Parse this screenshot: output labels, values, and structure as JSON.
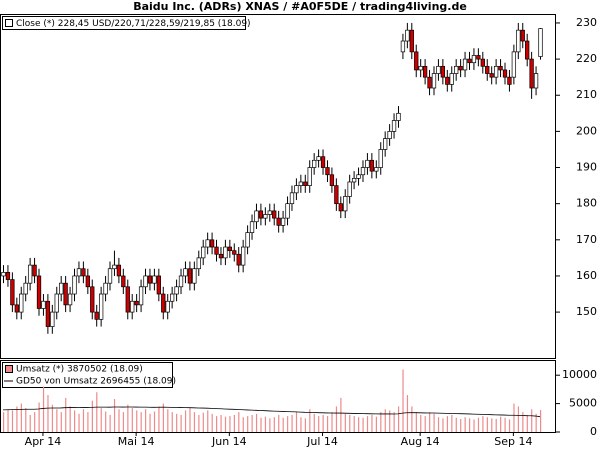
{
  "chart_data": [
    {
      "type": "candlestick",
      "title": "Baidu Inc. (ADRs) XNAS / #A0F5DE / trading4living.de",
      "name": "Close (*) 228,45 USD/220,71/228,59/219,85 (18.09)",
      "up_color": "#ffffff",
      "down_color": "#cc0000",
      "open": [
        160,
        161,
        159,
        152,
        150,
        155,
        158,
        163,
        160,
        151,
        153,
        146,
        150,
        155,
        158,
        152,
        155,
        160,
        162,
        160,
        157,
        150,
        148,
        155,
        158,
        162,
        163,
        160,
        157,
        150,
        153,
        152,
        157,
        160,
        158,
        160,
        155,
        150,
        153,
        155,
        157,
        160,
        162,
        158,
        162,
        165,
        168,
        170,
        168,
        166,
        165,
        168,
        167,
        166,
        163,
        168,
        172,
        175,
        178,
        176,
        177,
        178,
        176,
        174,
        176,
        180,
        183,
        185,
        186,
        185,
        190,
        192,
        193,
        190,
        188,
        185,
        180,
        178,
        182,
        186,
        187,
        188,
        190,
        192,
        189,
        190,
        195,
        198,
        200,
        203,
        222,
        225,
        228,
        222,
        217,
        218,
        215,
        212,
        216,
        218,
        215,
        213,
        216,
        218,
        217,
        220,
        219,
        221,
        220,
        218,
        216,
        215,
        218,
        217,
        215,
        215,
        222,
        228,
        225,
        220,
        212,
        220.71
      ],
      "high": [
        163,
        163,
        161,
        154,
        157,
        160,
        165,
        165,
        162,
        155,
        155,
        152,
        157,
        160,
        160,
        157,
        162,
        164,
        164,
        162,
        159,
        152,
        157,
        160,
        164,
        167,
        165,
        162,
        159,
        155,
        155,
        159,
        162,
        162,
        162,
        162,
        157,
        155,
        157,
        159,
        162,
        164,
        164,
        164,
        167,
        170,
        172,
        172,
        170,
        168,
        170,
        170,
        169,
        168,
        170,
        174,
        177,
        180,
        180,
        179,
        180,
        180,
        178,
        178,
        182,
        185,
        187,
        188,
        188,
        192,
        194,
        195,
        195,
        192,
        190,
        187,
        182,
        184,
        188,
        189,
        190,
        192,
        194,
        194,
        192,
        197,
        200,
        202,
        205,
        207,
        227,
        230,
        230,
        224,
        220,
        220,
        217,
        218,
        220,
        220,
        217,
        218,
        220,
        220,
        222,
        222,
        223,
        223,
        222,
        220,
        218,
        220,
        220,
        219,
        217,
        224,
        230,
        230,
        227,
        222,
        218,
        228.59
      ],
      "low": [
        158,
        157,
        150,
        148,
        148,
        153,
        156,
        158,
        149,
        149,
        144,
        144,
        148,
        153,
        150,
        150,
        153,
        158,
        158,
        155,
        148,
        146,
        146,
        153,
        156,
        160,
        158,
        155,
        148,
        148,
        150,
        150,
        155,
        156,
        156,
        153,
        148,
        148,
        151,
        153,
        155,
        158,
        156,
        156,
        160,
        163,
        166,
        166,
        164,
        163,
        163,
        165,
        164,
        161,
        161,
        166,
        170,
        173,
        174,
        174,
        175,
        174,
        172,
        172,
        174,
        178,
        181,
        183,
        183,
        183,
        188,
        190,
        188,
        186,
        183,
        178,
        176,
        176,
        180,
        184,
        185,
        186,
        188,
        187,
        187,
        188,
        193,
        196,
        198,
        201,
        220,
        223,
        220,
        215,
        215,
        213,
        210,
        210,
        214,
        213,
        211,
        211,
        214,
        215,
        215,
        217,
        217,
        218,
        216,
        214,
        213,
        213,
        215,
        213,
        211,
        213,
        220,
        223,
        218,
        209,
        210,
        219.85
      ],
      "close": [
        161,
        159,
        152,
        150,
        155,
        158,
        163,
        160,
        151,
        153,
        146,
        150,
        155,
        158,
        152,
        155,
        160,
        162,
        160,
        157,
        150,
        148,
        155,
        158,
        162,
        163,
        160,
        157,
        150,
        153,
        152,
        157,
        160,
        158,
        160,
        155,
        150,
        153,
        155,
        157,
        160,
        162,
        158,
        162,
        165,
        168,
        170,
        168,
        166,
        165,
        168,
        167,
        166,
        163,
        168,
        172,
        175,
        178,
        176,
        177,
        178,
        176,
        174,
        176,
        180,
        183,
        185,
        186,
        185,
        190,
        192,
        193,
        190,
        188,
        185,
        180,
        178,
        182,
        186,
        187,
        188,
        190,
        192,
        189,
        190,
        195,
        198,
        200,
        203,
        205,
        225,
        228,
        222,
        217,
        218,
        215,
        212,
        216,
        218,
        215,
        213,
        216,
        218,
        217,
        220,
        219,
        221,
        220,
        218,
        216,
        215,
        218,
        217,
        215,
        213,
        222,
        228,
        225,
        220,
        212,
        216,
        228.45
      ],
      "ylim": [
        137.3,
        232.2
      ],
      "yticks": [
        150,
        160,
        170,
        180,
        190,
        200,
        210,
        220,
        230
      ]
    },
    {
      "type": "volume",
      "categories": [
        null,
        null,
        null,
        null,
        null,
        null,
        null,
        null,
        null,
        "Apr 14",
        null,
        null,
        null,
        null,
        null,
        null,
        null,
        null,
        null,
        null,
        null,
        null,
        null,
        null,
        null,
        null,
        null,
        null,
        null,
        null,
        "Mai 14",
        null,
        null,
        null,
        null,
        null,
        null,
        null,
        null,
        null,
        null,
        null,
        null,
        null,
        null,
        null,
        null,
        null,
        null,
        null,
        null,
        "Jun 14",
        null,
        null,
        null,
        null,
        null,
        null,
        null,
        null,
        null,
        null,
        null,
        null,
        null,
        null,
        null,
        null,
        null,
        null,
        null,
        null,
        "Jul 14",
        null,
        null,
        null,
        null,
        null,
        null,
        null,
        null,
        null,
        null,
        null,
        null,
        null,
        null,
        null,
        null,
        null,
        null,
        null,
        null,
        null,
        "Aug 14",
        null,
        null,
        null,
        null,
        null,
        null,
        null,
        null,
        null,
        null,
        null,
        null,
        null,
        null,
        null,
        null,
        null,
        null,
        null,
        null,
        "Sep 14",
        null,
        null,
        null,
        null,
        null,
        null
      ],
      "series": [
        {
          "name": "Umsatz (*) 3870502 (18.09)",
          "type": "bar",
          "color": "#ee8a8a",
          "values": [
            3500,
            4000,
            3800,
            4500,
            5000,
            4200,
            3000,
            3500,
            5200,
            8000,
            6500,
            4800,
            4000,
            3500,
            6000,
            4500,
            3800,
            3200,
            4000,
            3500,
            5500,
            7000,
            4200,
            3600,
            3000,
            5800,
            4000,
            3500,
            4800,
            4200,
            3800,
            3500,
            4000,
            3200,
            3600,
            4500,
            5000,
            4000,
            3500,
            3200,
            3000,
            3800,
            4200,
            3500,
            3000,
            3400,
            3800,
            3200,
            2800,
            3000,
            2700,
            2800,
            3000,
            3500,
            2600,
            2800,
            3000,
            3200,
            2500,
            2700,
            2400,
            2600,
            3000,
            2500,
            2800,
            3000,
            3500,
            2600,
            2400,
            4000,
            3200,
            2800,
            3000,
            2800,
            3500,
            4500,
            6000,
            3200,
            3000,
            2800,
            2600,
            2500,
            2800,
            3000,
            2700,
            3500,
            4000,
            3800,
            3500,
            4500,
            11000,
            6500,
            4500,
            3500,
            3000,
            2800,
            3500,
            3200,
            2600,
            2400,
            2800,
            3000,
            2500,
            2300,
            2600,
            2400,
            2200,
            2500,
            2800,
            2600,
            2400,
            2300,
            2700,
            2500,
            2200,
            5000,
            4500,
            3500,
            3000,
            4000,
            3200,
            3870.502
          ]
        },
        {
          "name": "GD50 von Umsatz 2696455 (18.09)",
          "type": "line",
          "color": "#000000",
          "values": [
            3900,
            3920,
            3940,
            3960,
            3980,
            4000,
            4000,
            4010,
            4050,
            4150,
            4200,
            4220,
            4230,
            4240,
            4280,
            4300,
            4300,
            4290,
            4300,
            4300,
            4330,
            4380,
            4380,
            4380,
            4370,
            4400,
            4400,
            4390,
            4400,
            4400,
            4390,
            4380,
            4380,
            4360,
            4350,
            4360,
            4370,
            4360,
            4340,
            4320,
            4300,
            4290,
            4280,
            4260,
            4230,
            4210,
            4190,
            4160,
            4120,
            4090,
            4050,
            4020,
            3990,
            3960,
            3920,
            3880,
            3850,
            3820,
            3780,
            3750,
            3710,
            3680,
            3650,
            3620,
            3590,
            3560,
            3540,
            3500,
            3470,
            3460,
            3430,
            3400,
            3380,
            3360,
            3340,
            3330,
            3330,
            3310,
            3290,
            3270,
            3250,
            3230,
            3220,
            3200,
            3190,
            3180,
            3180,
            3180,
            3170,
            3190,
            3330,
            3390,
            3410,
            3400,
            3380,
            3360,
            3350,
            3340,
            3320,
            3300,
            3280,
            3260,
            3240,
            3220,
            3200,
            3180,
            3150,
            3120,
            3100,
            3080,
            3050,
            3020,
            3000,
            2980,
            2950,
            2950,
            2930,
            2900,
            2870,
            2860,
            2810,
            2696.455
          ]
        }
      ],
      "ylim": [
        0,
        12500
      ],
      "yticks": [
        0,
        5000,
        10000
      ]
    }
  ]
}
